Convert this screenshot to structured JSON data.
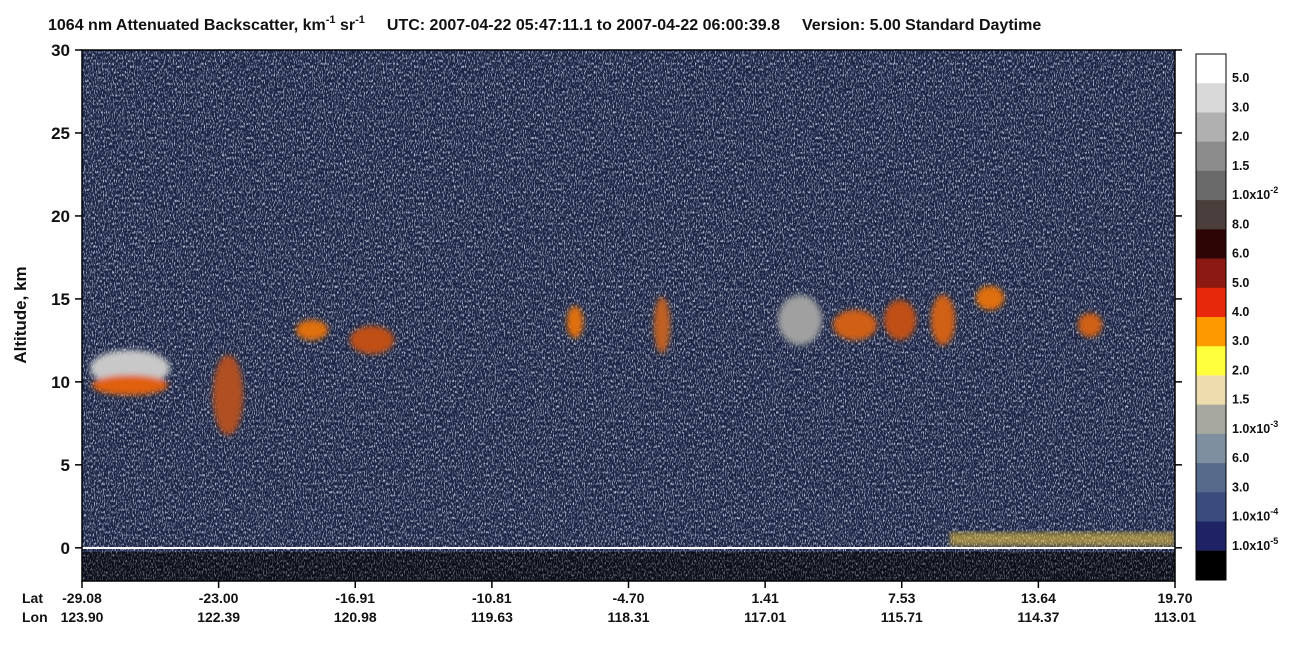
{
  "chart_data": {
    "type": "heatmap",
    "title": {
      "part1": "1064 nm Attenuated Backscatter, km",
      "exp1": "-1",
      "part2": " sr",
      "exp2": "-1",
      "utc": "UTC:  2007-04-22 05:47:11.1  to  2007-04-22 06:00:39.8",
      "version": "Version: 5.00  Standard  Daytime"
    },
    "y_label": "Altitude, km",
    "ylim": [
      -2,
      30
    ],
    "yticks": [
      0,
      5,
      10,
      15,
      20,
      25,
      30
    ],
    "x_row_labels": [
      "Lat",
      "Lon"
    ],
    "lat": [
      "-29.08",
      "-23.00",
      "-16.91",
      "-10.81",
      "-4.70",
      "1.41",
      "7.53",
      "13.64",
      "19.70"
    ],
    "lon": [
      "123.90",
      "122.39",
      "120.98",
      "119.63",
      "118.31",
      "117.01",
      "115.71",
      "114.37",
      "113.01"
    ],
    "colorbar": {
      "colors": [
        "#ffffff",
        "#d9d9d9",
        "#b0b0b0",
        "#8c8c8c",
        "#6a6a6a",
        "#4a3f3c",
        "#2e0505",
        "#8b1a12",
        "#e8280a",
        "#ff9900",
        "#ffff3c",
        "#ecdcae",
        "#a7a89f",
        "#7e8fa0",
        "#566a8c",
        "#3a4c7c",
        "#1e2366",
        "#000000"
      ],
      "labels": [
        {
          "base": "5.0"
        },
        {
          "base": "3.0"
        },
        {
          "base": "2.0"
        },
        {
          "base": "1.5"
        },
        {
          "base": "1.0x10",
          "exponent": "-2"
        },
        {
          "base": "8.0"
        },
        {
          "base": "6.0"
        },
        {
          "base": "5.0"
        },
        {
          "base": "4.0"
        },
        {
          "base": "3.0"
        },
        {
          "base": "2.0"
        },
        {
          "base": "1.5"
        },
        {
          "base": "1.0x10",
          "exponent": "-3"
        },
        {
          "base": "6.0"
        },
        {
          "base": "3.0"
        },
        {
          "base": "1.0x10",
          "exponent": "-4"
        },
        {
          "base": "1.0x10",
          "exponent": "-5"
        }
      ]
    }
  }
}
